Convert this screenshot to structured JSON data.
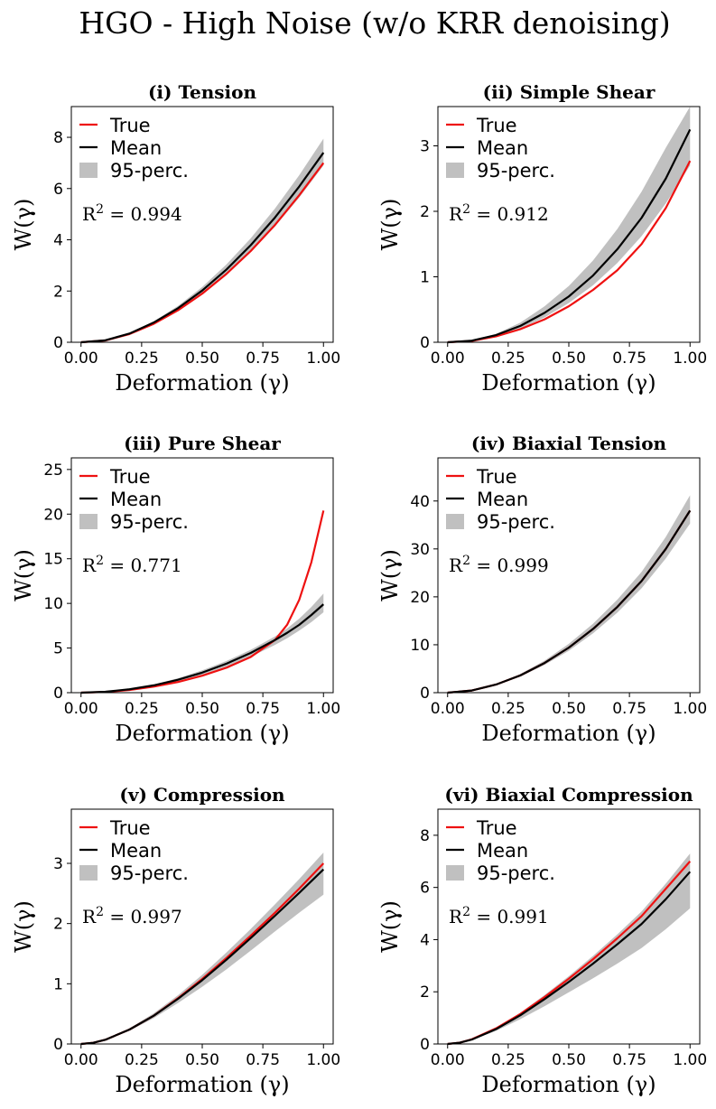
{
  "figure": {
    "title": "HGO - High Noise (w/o KRR denoising)"
  },
  "colors": {
    "true": "#ee1111",
    "mean": "#000000",
    "band": "#c0c0c0"
  },
  "chart_data": [
    {
      "type": "line",
      "title": "(i) Tension",
      "xlabel": "Deformation (γ)",
      "ylabel": "W(γ)",
      "xlim": [
        -0.04,
        1.04
      ],
      "ylim": [
        0,
        9.2
      ],
      "xticks": [
        0.0,
        0.25,
        0.5,
        0.75,
        1.0
      ],
      "xtick_labels": [
        "0.00",
        "0.25",
        "0.50",
        "0.75",
        "1.00"
      ],
      "yticks": [
        0,
        2,
        4,
        6,
        8
      ],
      "ytick_labels": [
        "0",
        "2",
        "4",
        "6",
        "8"
      ],
      "legend": [
        "True",
        "Mean",
        "95-perc."
      ],
      "r2_prefix": "R",
      "r2_value": " = 0.994",
      "x": [
        0,
        0.1,
        0.2,
        0.3,
        0.4,
        0.5,
        0.6,
        0.7,
        0.8,
        0.9,
        1.0
      ],
      "series": [
        {
          "name": "True",
          "values": [
            0,
            0.07,
            0.32,
            0.72,
            1.25,
            1.9,
            2.67,
            3.56,
            4.58,
            5.74,
            7.0
          ]
        },
        {
          "name": "Mean",
          "values": [
            0,
            0.075,
            0.34,
            0.77,
            1.33,
            2.02,
            2.84,
            3.79,
            4.87,
            6.08,
            7.4
          ]
        },
        {
          "name": "95-perc. upper",
          "values": [
            0,
            0.08,
            0.36,
            0.82,
            1.42,
            2.16,
            3.04,
            4.06,
            5.22,
            6.52,
            7.95
          ]
        },
        {
          "name": "95-perc. lower",
          "values": [
            0,
            0.068,
            0.32,
            0.72,
            1.24,
            1.88,
            2.64,
            3.52,
            4.52,
            5.65,
            6.9
          ]
        }
      ]
    },
    {
      "type": "line",
      "title": "(ii) Simple Shear",
      "xlabel": "Deformation (γ)",
      "ylabel": "W(γ)",
      "xlim": [
        -0.04,
        1.04
      ],
      "ylim": [
        0,
        3.6
      ],
      "xticks": [
        0.0,
        0.25,
        0.5,
        0.75,
        1.0
      ],
      "xtick_labels": [
        "0.00",
        "0.25",
        "0.50",
        "0.75",
        "1.00"
      ],
      "yticks": [
        0,
        1,
        2,
        3
      ],
      "ytick_labels": [
        "0",
        "1",
        "2",
        "3"
      ],
      "legend": [
        "True",
        "Mean",
        "95-perc."
      ],
      "r2_prefix": "R",
      "r2_value": " = 0.912",
      "x": [
        0,
        0.1,
        0.2,
        0.3,
        0.4,
        0.5,
        0.6,
        0.7,
        0.8,
        0.9,
        1.0
      ],
      "series": [
        {
          "name": "True",
          "values": [
            0,
            0.02,
            0.09,
            0.2,
            0.35,
            0.55,
            0.8,
            1.1,
            1.5,
            2.05,
            2.77
          ]
        },
        {
          "name": "Mean",
          "values": [
            0,
            0.025,
            0.11,
            0.25,
            0.45,
            0.7,
            1.02,
            1.42,
            1.9,
            2.5,
            3.25
          ]
        },
        {
          "name": "95-perc. upper",
          "values": [
            0,
            0.03,
            0.13,
            0.3,
            0.55,
            0.86,
            1.25,
            1.73,
            2.3,
            2.97,
            3.6
          ]
        },
        {
          "name": "95-perc. lower",
          "values": [
            0,
            0.02,
            0.09,
            0.21,
            0.38,
            0.6,
            0.87,
            1.21,
            1.62,
            2.12,
            2.7
          ]
        }
      ]
    },
    {
      "type": "line",
      "title": "(iii) Pure Shear",
      "xlabel": "Deformation (γ)",
      "ylabel": "W(γ)",
      "xlim": [
        -0.04,
        1.04
      ],
      "ylim": [
        0,
        26.3
      ],
      "xticks": [
        0.0,
        0.25,
        0.5,
        0.75,
        1.0
      ],
      "xtick_labels": [
        "0.00",
        "0.25",
        "0.50",
        "0.75",
        "1.00"
      ],
      "yticks": [
        0,
        5,
        10,
        15,
        20,
        25
      ],
      "ytick_labels": [
        "0",
        "5",
        "10",
        "15",
        "20",
        "25"
      ],
      "legend": [
        "True",
        "Mean",
        "95-perc."
      ],
      "r2_prefix": "R",
      "r2_value": " = 0.771",
      "x": [
        0,
        0.1,
        0.2,
        0.3,
        0.4,
        0.5,
        0.6,
        0.7,
        0.8,
        0.85,
        0.9,
        0.95,
        1.0
      ],
      "series": [
        {
          "name": "True",
          "values": [
            0,
            0.08,
            0.3,
            0.68,
            1.2,
            1.9,
            2.8,
            4.0,
            5.9,
            7.6,
            10.4,
            14.6,
            20.4
          ]
        },
        {
          "name": "Mean",
          "values": [
            0,
            0.1,
            0.38,
            0.82,
            1.45,
            2.25,
            3.25,
            4.45,
            5.9,
            6.7,
            7.6,
            8.7,
            9.9
          ]
        },
        {
          "name": "95-perc. upper",
          "values": [
            0,
            0.11,
            0.42,
            0.92,
            1.62,
            2.5,
            3.55,
            4.8,
            6.3,
            7.2,
            8.3,
            9.6,
            11.1
          ]
        },
        {
          "name": "95-perc. lower",
          "values": [
            0,
            0.09,
            0.34,
            0.74,
            1.3,
            2.02,
            2.92,
            4.02,
            5.35,
            6.1,
            6.95,
            7.9,
            9.0
          ]
        }
      ]
    },
    {
      "type": "line",
      "title": "(iv) Biaxial Tension",
      "xlabel": "Deformation (γ)",
      "ylabel": "W(γ)",
      "xlim": [
        -0.04,
        1.04
      ],
      "ylim": [
        0,
        49
      ],
      "xticks": [
        0.0,
        0.25,
        0.5,
        0.75,
        1.0
      ],
      "xtick_labels": [
        "0.00",
        "0.25",
        "0.50",
        "0.75",
        "1.00"
      ],
      "yticks": [
        0,
        10,
        20,
        30,
        40
      ],
      "ytick_labels": [
        "0",
        "10",
        "20",
        "30",
        "40"
      ],
      "legend": [
        "True",
        "Mean",
        "95-perc."
      ],
      "r2_prefix": "R",
      "r2_value": " = 0.999",
      "x": [
        0,
        0.1,
        0.2,
        0.3,
        0.4,
        0.5,
        0.6,
        0.7,
        0.8,
        0.9,
        1.0
      ],
      "series": [
        {
          "name": "True",
          "values": [
            0,
            0.45,
            1.7,
            3.6,
            6.2,
            9.4,
            13.3,
            17.9,
            23.3,
            30.0,
            38.0
          ]
        },
        {
          "name": "Mean",
          "values": [
            0,
            0.45,
            1.7,
            3.6,
            6.2,
            9.4,
            13.3,
            17.9,
            23.3,
            30.0,
            38.0
          ]
        },
        {
          "name": "95-perc. upper",
          "values": [
            0,
            0.5,
            1.85,
            3.9,
            6.7,
            10.2,
            14.4,
            19.4,
            25.2,
            32.5,
            41.2
          ]
        },
        {
          "name": "95-perc. lower",
          "values": [
            0,
            0.42,
            1.58,
            3.35,
            5.8,
            8.75,
            12.4,
            16.7,
            21.8,
            28.0,
            35.3
          ]
        }
      ]
    },
    {
      "type": "line",
      "title": "(v) Compression",
      "xlabel": "Deformation (γ)",
      "ylabel": "W(γ)",
      "xlim": [
        -0.04,
        1.04
      ],
      "ylim": [
        0,
        3.9
      ],
      "xticks": [
        0.0,
        0.25,
        0.5,
        0.75,
        1.0
      ],
      "xtick_labels": [
        "0.00",
        "0.25",
        "0.50",
        "0.75",
        "1.00"
      ],
      "yticks": [
        0,
        1,
        2,
        3
      ],
      "ytick_labels": [
        "0",
        "1",
        "2",
        "3"
      ],
      "legend": [
        "True",
        "Mean",
        "95-perc."
      ],
      "r2_prefix": "R",
      "r2_value": " = 0.997",
      "x": [
        0,
        0.05,
        0.1,
        0.2,
        0.3,
        0.4,
        0.5,
        0.6,
        0.7,
        0.8,
        0.9,
        1.0
      ],
      "series": [
        {
          "name": "True",
          "values": [
            0,
            0.02,
            0.07,
            0.24,
            0.47,
            0.76,
            1.08,
            1.43,
            1.8,
            2.18,
            2.58,
            3.0
          ]
        },
        {
          "name": "Mean",
          "values": [
            0,
            0.02,
            0.07,
            0.24,
            0.47,
            0.75,
            1.06,
            1.4,
            1.76,
            2.13,
            2.51,
            2.9
          ]
        },
        {
          "name": "95-perc. upper",
          "values": [
            0,
            0.025,
            0.08,
            0.26,
            0.51,
            0.81,
            1.15,
            1.52,
            1.91,
            2.32,
            2.74,
            3.18
          ]
        },
        {
          "name": "95-perc. lower",
          "values": [
            0,
            0.018,
            0.065,
            0.22,
            0.43,
            0.68,
            0.95,
            1.24,
            1.55,
            1.87,
            2.18,
            2.48
          ]
        }
      ]
    },
    {
      "type": "line",
      "title": "(vi) Biaxial Compression",
      "xlabel": "Deformation (γ)",
      "ylabel": "W(γ)",
      "xlim": [
        -0.04,
        1.04
      ],
      "ylim": [
        0,
        9.0
      ],
      "xticks": [
        0.0,
        0.25,
        0.5,
        0.75,
        1.0
      ],
      "xtick_labels": [
        "0.00",
        "0.25",
        "0.50",
        "0.75",
        "1.00"
      ],
      "yticks": [
        0,
        2,
        4,
        6,
        8
      ],
      "ytick_labels": [
        "0",
        "2",
        "4",
        "6",
        "8"
      ],
      "legend": [
        "True",
        "Mean",
        "95-perc."
      ],
      "r2_prefix": "R",
      "r2_value": " = 0.991",
      "x": [
        0,
        0.05,
        0.1,
        0.2,
        0.3,
        0.4,
        0.5,
        0.6,
        0.7,
        0.8,
        0.9,
        1.0
      ],
      "series": [
        {
          "name": "True",
          "values": [
            0,
            0.05,
            0.18,
            0.6,
            1.15,
            1.8,
            2.5,
            3.25,
            4.05,
            4.9,
            5.95,
            7.0
          ]
        },
        {
          "name": "Mean",
          "values": [
            0,
            0.05,
            0.17,
            0.57,
            1.1,
            1.72,
            2.38,
            3.08,
            3.82,
            4.6,
            5.55,
            6.6
          ]
        },
        {
          "name": "95-perc. upper",
          "values": [
            0,
            0.055,
            0.19,
            0.62,
            1.2,
            1.88,
            2.6,
            3.38,
            4.2,
            5.08,
            6.15,
            7.3
          ]
        },
        {
          "name": "95-perc. lower",
          "values": [
            0,
            0.045,
            0.15,
            0.5,
            0.95,
            1.45,
            1.98,
            2.52,
            3.08,
            3.68,
            4.4,
            5.2
          ]
        }
      ]
    }
  ]
}
